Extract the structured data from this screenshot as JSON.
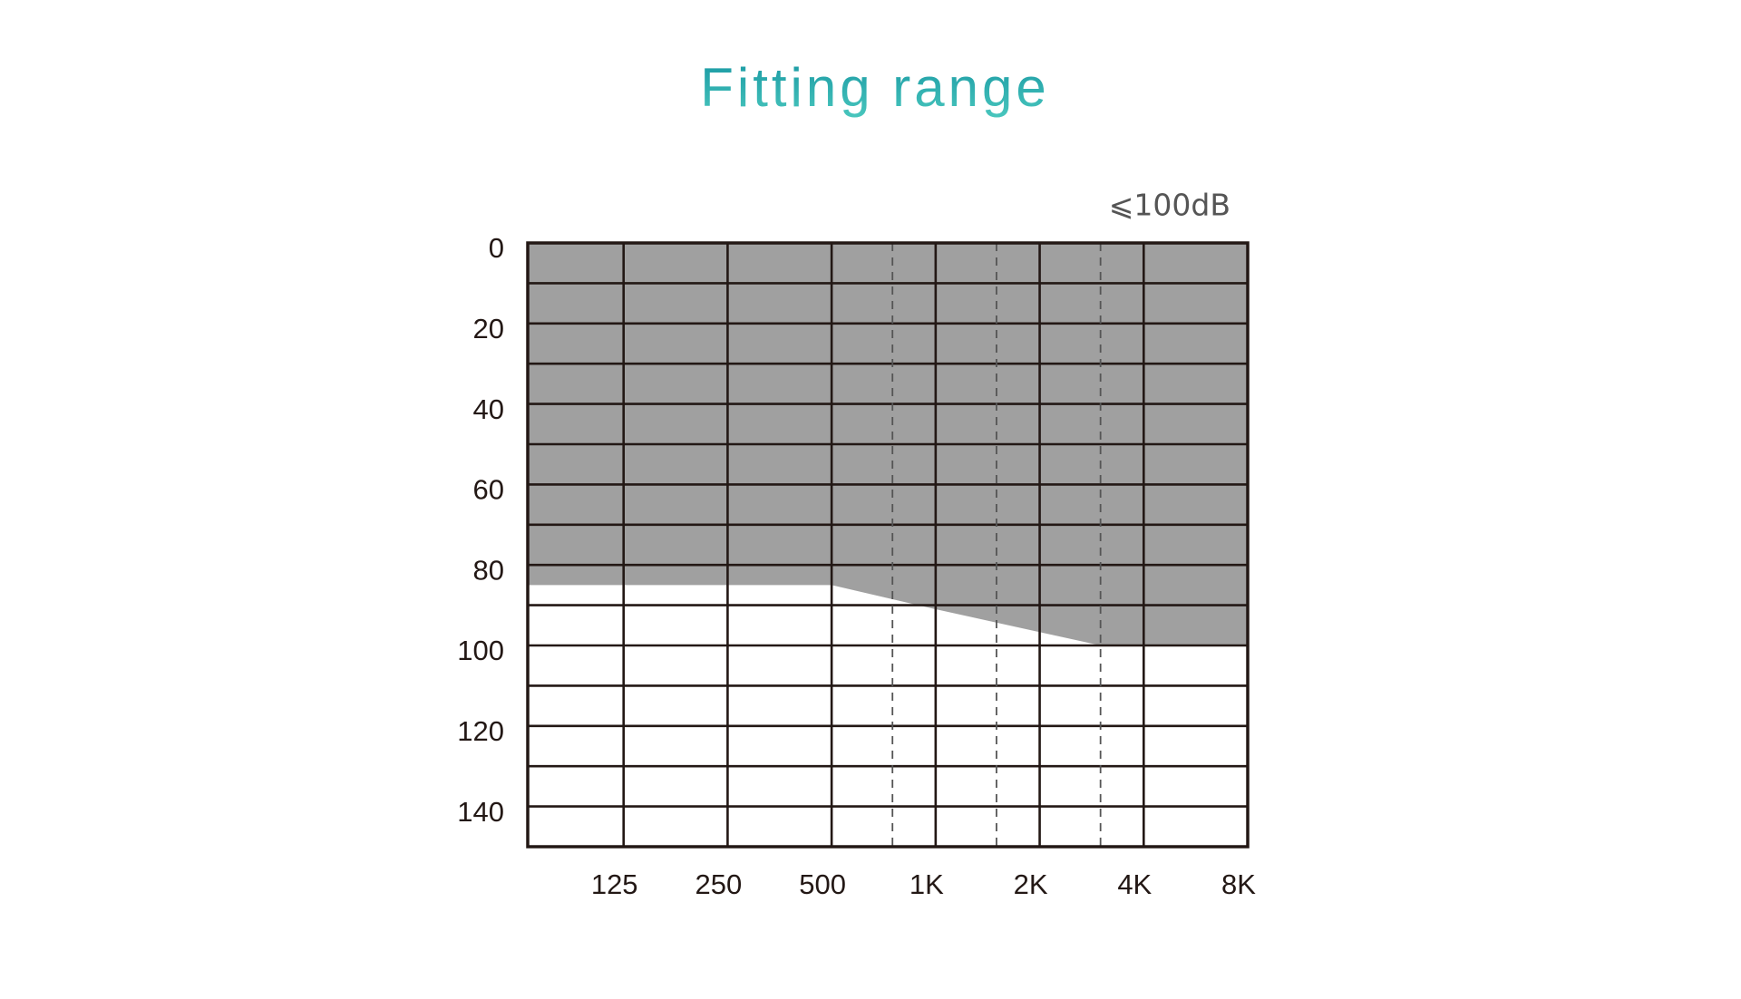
{
  "chart_data": {
    "type": "area",
    "title": "Fitting range",
    "annotation": "⩽100dB",
    "x": [
      66,
      500,
      1000,
      3000,
      8000
    ],
    "values": [
      85,
      85,
      91,
      100,
      100
    ],
    "color": "#a0a0a0",
    "xscale": "log",
    "xlim": [
      66,
      8000
    ],
    "xticks": [
      125,
      250,
      500,
      {
        "value": 1000,
        "label": "1K"
      },
      {
        "value": 2000,
        "label": "2K"
      },
      {
        "value": 4000,
        "label": "4K"
      },
      {
        "value": 8000,
        "label": "8K"
      }
    ],
    "xminorticks": [
      750,
      1500,
      3000
    ],
    "ylim": [
      0,
      150
    ],
    "yinverted": true,
    "yticks": [
      0,
      20,
      40,
      60,
      80,
      100,
      120,
      140
    ],
    "yminorticks": [
      10,
      30,
      50,
      70,
      90,
      110,
      130
    ],
    "grid": true
  }
}
